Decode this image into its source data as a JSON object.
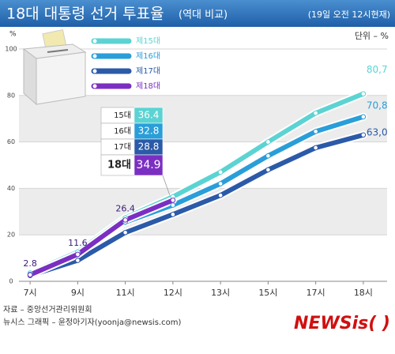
{
  "chart_data": {
    "type": "line",
    "title": "18대 대통령 선거 투표율",
    "title_note": "(역대 비교)",
    "subtitle": "(19일 오전 12시현재)",
    "unit": "단위 – %",
    "y_label": "%",
    "categories": [
      "7시",
      "9시",
      "11시",
      "12시",
      "13시",
      "15시",
      "17시",
      "18시"
    ],
    "series": [
      {
        "name": "제15대",
        "color": "#5cd3d3",
        "values": [
          3.6,
          12.6,
          27.3,
          36.4,
          47.0,
          60.0,
          72.4,
          80.7
        ],
        "value_labels": [
          null,
          null,
          null,
          null,
          null,
          null,
          null,
          "80,7"
        ]
      },
      {
        "name": "제16대",
        "color": "#2a9ed8",
        "values": [
          3.0,
          11.5,
          25.5,
          32.8,
          42.0,
          54.0,
          64.5,
          70.8
        ],
        "value_labels": [
          null,
          null,
          null,
          null,
          null,
          null,
          null,
          "70,8"
        ]
      },
      {
        "name": "제17대",
        "color": "#2b5aa8",
        "values": [
          2.5,
          9.0,
          21.0,
          28.8,
          37.0,
          48.0,
          57.5,
          63.0
        ],
        "value_labels": [
          null,
          null,
          null,
          null,
          null,
          null,
          null,
          "63,0"
        ]
      },
      {
        "name": "제18대",
        "color": "#7b2fc2",
        "values": [
          2.8,
          11.6,
          26.4,
          34.9,
          null,
          null,
          null,
          null
        ]
      }
    ],
    "callout_labels": [
      "15대",
      "16대",
      "17대",
      "18대"
    ],
    "ylim": [
      0,
      100
    ],
    "yticks": [
      0,
      20,
      40,
      60,
      80,
      100
    ],
    "grid": true,
    "source": "자료 – 중앙선거관리위원회",
    "credit": "뉴시스 그래픽 – 윤정아기자(yoonja@newsis.com)",
    "logo": "NEWSis( )"
  }
}
